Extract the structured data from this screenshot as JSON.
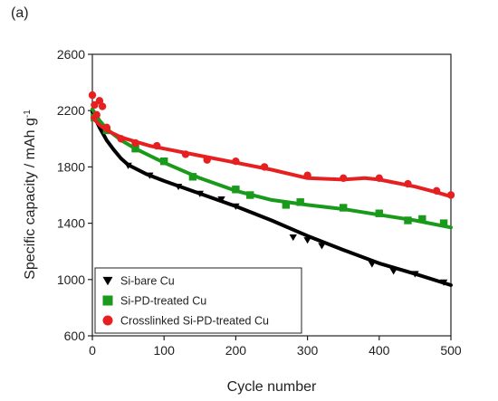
{
  "panel_label": "(a)",
  "chart_data": {
    "type": "scatter",
    "xlabel": "Cycle number",
    "ylabel_main": "Specific capacity / mAh g",
    "ylabel_sup": "-1",
    "xlim": [
      0,
      500
    ],
    "ylim": [
      600,
      2600
    ],
    "xticks": [
      0,
      100,
      200,
      300,
      400,
      500
    ],
    "yticks": [
      600,
      1000,
      1400,
      1800,
      2200,
      2600
    ],
    "legend_position": "bottom-left",
    "series": [
      {
        "name": "Si-bare Cu",
        "color": "#000000",
        "marker": "triangle-down",
        "line": [
          [
            0,
            2190
          ],
          [
            10,
            2080
          ],
          [
            20,
            1990
          ],
          [
            30,
            1920
          ],
          [
            40,
            1860
          ],
          [
            50,
            1815
          ],
          [
            75,
            1750
          ],
          [
            100,
            1700
          ],
          [
            150,
            1610
          ],
          [
            200,
            1520
          ],
          [
            250,
            1420
          ],
          [
            300,
            1310
          ],
          [
            350,
            1210
          ],
          [
            400,
            1115
          ],
          [
            450,
            1040
          ],
          [
            500,
            960
          ]
        ],
        "points": [
          [
            5,
            2150
          ],
          [
            15,
            2050
          ],
          [
            50,
            1810
          ],
          [
            80,
            1740
          ],
          [
            120,
            1660
          ],
          [
            150,
            1610
          ],
          [
            180,
            1570
          ],
          [
            200,
            1520
          ],
          [
            280,
            1300
          ],
          [
            300,
            1280
          ],
          [
            320,
            1240
          ],
          [
            390,
            1110
          ],
          [
            420,
            1060
          ],
          [
            450,
            1040
          ],
          [
            490,
            980
          ]
        ]
      },
      {
        "name": "Si-PD-treated Cu",
        "color": "#1a9a1a",
        "marker": "square",
        "line": [
          [
            0,
            2210
          ],
          [
            10,
            2130
          ],
          [
            20,
            2070
          ],
          [
            40,
            1990
          ],
          [
            60,
            1930
          ],
          [
            80,
            1880
          ],
          [
            100,
            1830
          ],
          [
            150,
            1720
          ],
          [
            200,
            1630
          ],
          [
            250,
            1565
          ],
          [
            300,
            1530
          ],
          [
            350,
            1500
          ],
          [
            400,
            1460
          ],
          [
            450,
            1420
          ],
          [
            500,
            1370
          ]
        ],
        "points": [
          [
            3,
            2150
          ],
          [
            20,
            2060
          ],
          [
            60,
            1930
          ],
          [
            100,
            1840
          ],
          [
            140,
            1730
          ],
          [
            200,
            1640
          ],
          [
            220,
            1600
          ],
          [
            270,
            1530
          ],
          [
            290,
            1550
          ],
          [
            350,
            1510
          ],
          [
            400,
            1470
          ],
          [
            440,
            1420
          ],
          [
            460,
            1430
          ],
          [
            490,
            1400
          ]
        ]
      },
      {
        "name": "Crosslinked Si-PD-treated Cu",
        "color": "#e62020",
        "marker": "circle",
        "line": [
          [
            0,
            2150
          ],
          [
            10,
            2100
          ],
          [
            20,
            2060
          ],
          [
            40,
            2010
          ],
          [
            60,
            1980
          ],
          [
            80,
            1950
          ],
          [
            100,
            1930
          ],
          [
            150,
            1880
          ],
          [
            200,
            1830
          ],
          [
            250,
            1780
          ],
          [
            300,
            1720
          ],
          [
            350,
            1710
          ],
          [
            380,
            1720
          ],
          [
            400,
            1710
          ],
          [
            420,
            1690
          ],
          [
            450,
            1660
          ],
          [
            480,
            1620
          ],
          [
            500,
            1590
          ]
        ],
        "points": [
          [
            0,
            2310
          ],
          [
            3,
            2240
          ],
          [
            6,
            2170
          ],
          [
            10,
            2270
          ],
          [
            14,
            2230
          ],
          [
            20,
            2080
          ],
          [
            40,
            2000
          ],
          [
            60,
            1970
          ],
          [
            90,
            1950
          ],
          [
            130,
            1890
          ],
          [
            160,
            1850
          ],
          [
            200,
            1840
          ],
          [
            240,
            1800
          ],
          [
            300,
            1740
          ],
          [
            350,
            1720
          ],
          [
            400,
            1720
          ],
          [
            440,
            1680
          ],
          [
            480,
            1630
          ],
          [
            500,
            1600
          ]
        ]
      }
    ]
  }
}
